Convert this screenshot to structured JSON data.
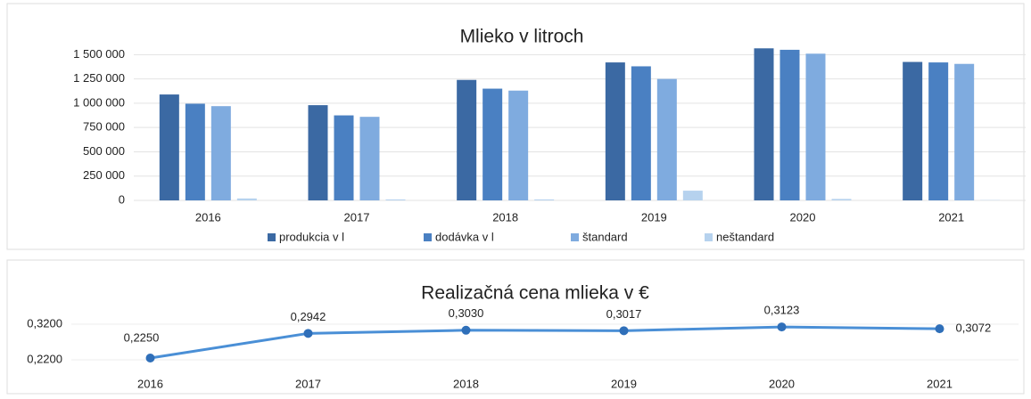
{
  "chart_data": [
    {
      "type": "bar",
      "title": "Mlieko v litroch",
      "categories": [
        "2016",
        "2017",
        "2018",
        "2019",
        "2020",
        "2021"
      ],
      "series": [
        {
          "name": "produkcia v l",
          "color": "#3b69a3",
          "values": [
            1090000,
            980000,
            1240000,
            1420000,
            1565000,
            1425000
          ]
        },
        {
          "name": "dodávka v l",
          "color": "#4a80c2",
          "values": [
            995000,
            875000,
            1150000,
            1380000,
            1550000,
            1420000
          ]
        },
        {
          "name": "štandard",
          "color": "#7fabdf",
          "values": [
            970000,
            860000,
            1130000,
            1250000,
            1510000,
            1405000
          ]
        },
        {
          "name": "neštandard",
          "color": "#b6d2ee",
          "values": [
            20000,
            10000,
            10000,
            100000,
            15000,
            3000
          ]
        }
      ],
      "ylim": [
        0,
        1650000
      ],
      "yticks": [
        0,
        {
          "value": 250000,
          "label": "250 000"
        },
        {
          "value": 500000,
          "label": "500 000"
        },
        {
          "value": 750000,
          "label": "750 000"
        },
        {
          "value": 1000000,
          "label": "1 000 000"
        },
        {
          "value": 1250000,
          "label": "1 250 000"
        },
        {
          "value": 1500000,
          "label": "1 500 000"
        }
      ],
      "grid": true,
      "legend": "bottom"
    },
    {
      "type": "line",
      "title": "Realizačná cena mlieka v €",
      "categories": [
        "2016",
        "2017",
        "2018",
        "2019",
        "2020",
        "2021"
      ],
      "values": [
        0.225,
        0.2942,
        0.303,
        0.3017,
        0.3123,
        0.3072
      ],
      "value_labels": [
        "0,2250",
        "0,2942",
        "0,3030",
        "0,3017",
        "0,3123",
        "0,3072"
      ],
      "color": "#4a8fd6",
      "ylim": [
        0.18,
        0.38
      ],
      "yticks": [
        {
          "value": 0.22,
          "label": "0,2200"
        },
        {
          "value": 0.32,
          "label": "0,3200"
        }
      ],
      "grid": true
    }
  ]
}
